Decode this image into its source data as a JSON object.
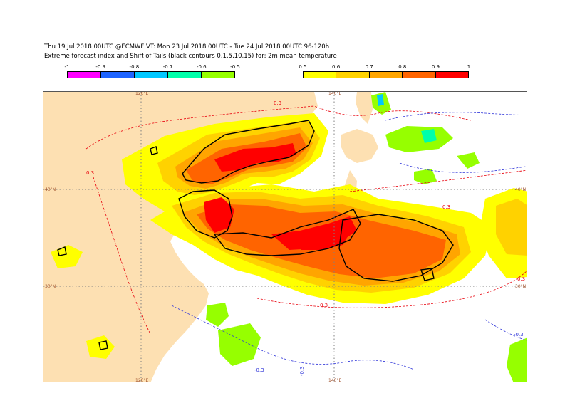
{
  "header": {
    "line1": "Thu 19 Jul 2018 00UTC @ECMWF VT: Mon 23 Jul 2018 00UTC - Tue 24 Jul 2018 00UTC  96-120h",
    "line2": "Extreme forecast index and Shift of Tails (black contours 0,1,5,10,15) for: 2m mean temperature"
  },
  "colorbar_negative": {
    "ticks": [
      "-1",
      "-0.9",
      "-0.8",
      "-0.7",
      "-0.6",
      "-0.5"
    ],
    "colors": [
      "#ff00ff",
      "#1e64ff",
      "#00c8ff",
      "#00ffaa",
      "#96ff00"
    ]
  },
  "colorbar_positive": {
    "ticks": [
      "0.5",
      "0.6",
      "0.7",
      "0.8",
      "0.9",
      "1"
    ],
    "colors": [
      "#ffff00",
      "#ffd200",
      "#ffa500",
      "#ff6400",
      "#ff0000"
    ]
  },
  "map": {
    "longitude_labels": [
      "120°E",
      "140°E"
    ],
    "latitude_labels": [
      "40°N",
      "30°N"
    ],
    "contour_labels": [
      "0.3",
      "-0.3"
    ],
    "colors": {
      "land": "#fde0b2",
      "sea": "#ffffff",
      "grid": "#808080",
      "positive_contour": "#e8000b",
      "negative_contour": "#2f35d9",
      "sot_contour": "#000000"
    }
  }
}
